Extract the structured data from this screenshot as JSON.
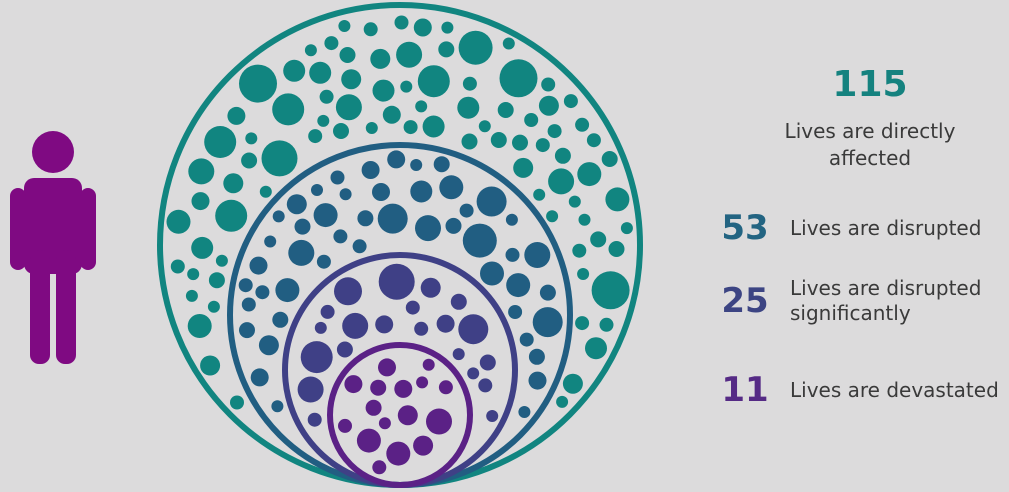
{
  "colors": {
    "background": "#dcdbdc",
    "person": "#7f0a82",
    "teal": "#118580",
    "steel_blue": "#215e82",
    "indigo": "#3f4086",
    "purple": "#5b2186",
    "text": "#3a3a3a"
  },
  "icons": {
    "person": "person-icon"
  },
  "stats": {
    "total": {
      "value": "115",
      "label": "Lives are directly\naffected"
    },
    "disrupted": {
      "value": "53",
      "label": "Lives are disrupted"
    },
    "significant": {
      "value": "25",
      "label": "Lives are disrupted\nsignificantly"
    },
    "devastated": {
      "value": "11",
      "label": "Lives are devastated"
    }
  }
}
